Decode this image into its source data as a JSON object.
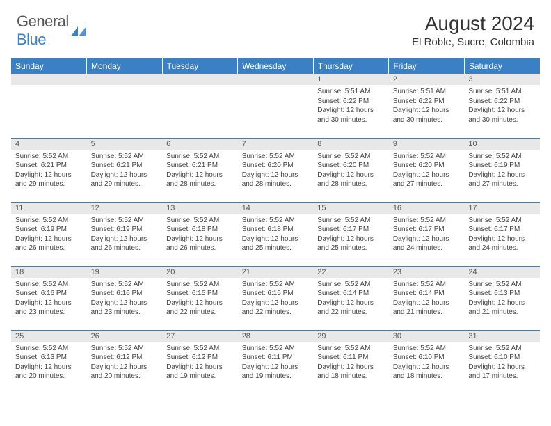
{
  "logo": {
    "text1": "General",
    "text2": "Blue",
    "text1_color": "#555555",
    "text2_color": "#3b7fc4",
    "icon_color": "#3b7fc4"
  },
  "header": {
    "title": "August 2024",
    "location": "El Roble, Sucre, Colombia"
  },
  "style": {
    "header_bg": "#3b7fc4",
    "header_text": "#ffffff",
    "daynum_bg": "#e8e8e8",
    "grid_line": "#3b7fc4",
    "body_text": "#444444",
    "page_bg": "#ffffff"
  },
  "weekdays": [
    "Sunday",
    "Monday",
    "Tuesday",
    "Wednesday",
    "Thursday",
    "Friday",
    "Saturday"
  ],
  "weeks": [
    [
      {
        "empty": true
      },
      {
        "empty": true
      },
      {
        "empty": true
      },
      {
        "empty": true
      },
      {
        "num": "1",
        "sunrise": "5:51 AM",
        "sunset": "6:22 PM",
        "daylight": "12 hours and 30 minutes."
      },
      {
        "num": "2",
        "sunrise": "5:51 AM",
        "sunset": "6:22 PM",
        "daylight": "12 hours and 30 minutes."
      },
      {
        "num": "3",
        "sunrise": "5:51 AM",
        "sunset": "6:22 PM",
        "daylight": "12 hours and 30 minutes."
      }
    ],
    [
      {
        "num": "4",
        "sunrise": "5:52 AM",
        "sunset": "6:21 PM",
        "daylight": "12 hours and 29 minutes."
      },
      {
        "num": "5",
        "sunrise": "5:52 AM",
        "sunset": "6:21 PM",
        "daylight": "12 hours and 29 minutes."
      },
      {
        "num": "6",
        "sunrise": "5:52 AM",
        "sunset": "6:21 PM",
        "daylight": "12 hours and 28 minutes."
      },
      {
        "num": "7",
        "sunrise": "5:52 AM",
        "sunset": "6:20 PM",
        "daylight": "12 hours and 28 minutes."
      },
      {
        "num": "8",
        "sunrise": "5:52 AM",
        "sunset": "6:20 PM",
        "daylight": "12 hours and 28 minutes."
      },
      {
        "num": "9",
        "sunrise": "5:52 AM",
        "sunset": "6:20 PM",
        "daylight": "12 hours and 27 minutes."
      },
      {
        "num": "10",
        "sunrise": "5:52 AM",
        "sunset": "6:19 PM",
        "daylight": "12 hours and 27 minutes."
      }
    ],
    [
      {
        "num": "11",
        "sunrise": "5:52 AM",
        "sunset": "6:19 PM",
        "daylight": "12 hours and 26 minutes."
      },
      {
        "num": "12",
        "sunrise": "5:52 AM",
        "sunset": "6:19 PM",
        "daylight": "12 hours and 26 minutes."
      },
      {
        "num": "13",
        "sunrise": "5:52 AM",
        "sunset": "6:18 PM",
        "daylight": "12 hours and 26 minutes."
      },
      {
        "num": "14",
        "sunrise": "5:52 AM",
        "sunset": "6:18 PM",
        "daylight": "12 hours and 25 minutes."
      },
      {
        "num": "15",
        "sunrise": "5:52 AM",
        "sunset": "6:17 PM",
        "daylight": "12 hours and 25 minutes."
      },
      {
        "num": "16",
        "sunrise": "5:52 AM",
        "sunset": "6:17 PM",
        "daylight": "12 hours and 24 minutes."
      },
      {
        "num": "17",
        "sunrise": "5:52 AM",
        "sunset": "6:17 PM",
        "daylight": "12 hours and 24 minutes."
      }
    ],
    [
      {
        "num": "18",
        "sunrise": "5:52 AM",
        "sunset": "6:16 PM",
        "daylight": "12 hours and 23 minutes."
      },
      {
        "num": "19",
        "sunrise": "5:52 AM",
        "sunset": "6:16 PM",
        "daylight": "12 hours and 23 minutes."
      },
      {
        "num": "20",
        "sunrise": "5:52 AM",
        "sunset": "6:15 PM",
        "daylight": "12 hours and 22 minutes."
      },
      {
        "num": "21",
        "sunrise": "5:52 AM",
        "sunset": "6:15 PM",
        "daylight": "12 hours and 22 minutes."
      },
      {
        "num": "22",
        "sunrise": "5:52 AM",
        "sunset": "6:14 PM",
        "daylight": "12 hours and 22 minutes."
      },
      {
        "num": "23",
        "sunrise": "5:52 AM",
        "sunset": "6:14 PM",
        "daylight": "12 hours and 21 minutes."
      },
      {
        "num": "24",
        "sunrise": "5:52 AM",
        "sunset": "6:13 PM",
        "daylight": "12 hours and 21 minutes."
      }
    ],
    [
      {
        "num": "25",
        "sunrise": "5:52 AM",
        "sunset": "6:13 PM",
        "daylight": "12 hours and 20 minutes."
      },
      {
        "num": "26",
        "sunrise": "5:52 AM",
        "sunset": "6:12 PM",
        "daylight": "12 hours and 20 minutes."
      },
      {
        "num": "27",
        "sunrise": "5:52 AM",
        "sunset": "6:12 PM",
        "daylight": "12 hours and 19 minutes."
      },
      {
        "num": "28",
        "sunrise": "5:52 AM",
        "sunset": "6:11 PM",
        "daylight": "12 hours and 19 minutes."
      },
      {
        "num": "29",
        "sunrise": "5:52 AM",
        "sunset": "6:11 PM",
        "daylight": "12 hours and 18 minutes."
      },
      {
        "num": "30",
        "sunrise": "5:52 AM",
        "sunset": "6:10 PM",
        "daylight": "12 hours and 18 minutes."
      },
      {
        "num": "31",
        "sunrise": "5:52 AM",
        "sunset": "6:10 PM",
        "daylight": "12 hours and 17 minutes."
      }
    ]
  ],
  "labels": {
    "sunrise": "Sunrise:",
    "sunset": "Sunset:",
    "daylight": "Daylight:"
  }
}
